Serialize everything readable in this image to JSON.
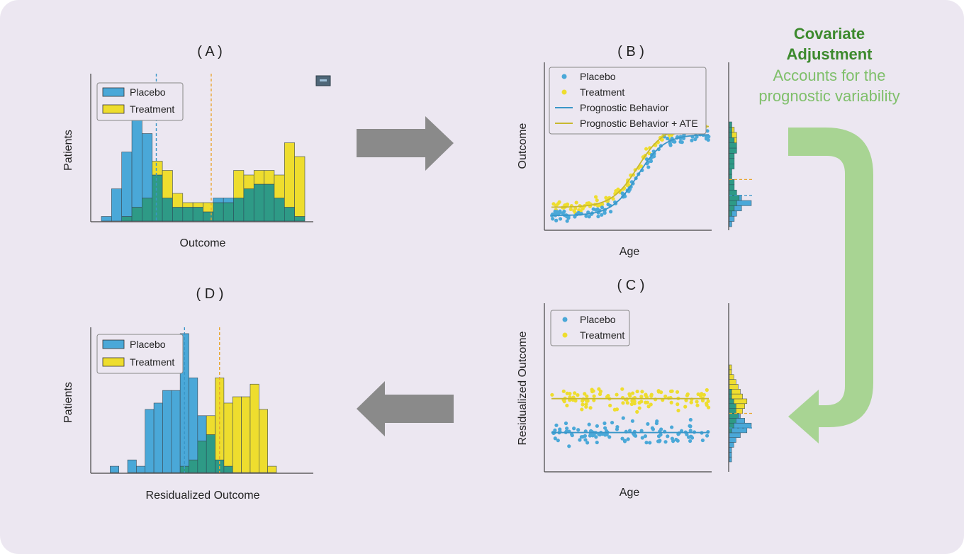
{
  "colors": {
    "placebo": "#4aa8d8",
    "treatment": "#eedd2e",
    "overlap": "#2e9a86",
    "placebo_line": "#3a96c8",
    "treatment_line": "#e8a630",
    "gray_arrow": "#8a8a8a",
    "green_head": "#3d8a2e",
    "green_sub": "#7fbf6a",
    "green_arrow": "#a8d493"
  },
  "annotation": {
    "line1": "Covariate",
    "line2": "Adjustment",
    "line3": "Accounts for the",
    "line4": "prognostic variability"
  },
  "chart_data": [
    {
      "id": "A",
      "type": "bar",
      "title": "( A )",
      "xlabel": "Outcome",
      "ylabel": "Patients",
      "legend_placement": "top-left",
      "series": [
        {
          "name": "Placebo",
          "values": [
            1,
            7,
            15,
            30,
            19,
            10,
            5,
            3,
            3,
            3,
            2,
            5,
            5,
            5,
            7,
            8,
            8,
            5,
            3,
            1
          ]
        },
        {
          "name": "Treatment",
          "values": [
            0,
            0,
            1,
            3,
            5,
            13,
            11,
            6,
            4,
            4,
            4,
            4,
            4,
            11,
            10,
            11,
            11,
            10,
            17,
            14
          ]
        }
      ],
      "ylim": [
        0,
        32
      ],
      "mean_lines": {
        "placebo_bin": 5.4,
        "treatment_bin": 10.8
      }
    },
    {
      "id": "B",
      "type": "scatter",
      "title": "( B )",
      "xlabel": "Age",
      "ylabel": "Outcome",
      "legend_placement": "top-left",
      "legend": [
        "Placebo",
        "Treatment",
        "Prognostic Behavior",
        "Prognostic Behavior + ATE"
      ],
      "xlim": [
        0,
        1
      ],
      "ylim": [
        0,
        1
      ],
      "curve": {
        "form": "logistic",
        "low": 0.12,
        "high": 0.9,
        "midpoint": 0.55,
        "steepness": 12
      },
      "ate": 0.08,
      "points_per_group": 110,
      "marginal_histogram": {
        "placebo": [
          1,
          2,
          3,
          5,
          9,
          5,
          3,
          2,
          2,
          1,
          1,
          2,
          2,
          2,
          3,
          3,
          2,
          1,
          1,
          1
        ],
        "treatment": [
          0,
          0,
          1,
          2,
          3,
          4,
          3,
          2,
          2,
          1,
          1,
          2,
          2,
          2,
          3,
          3,
          3,
          3,
          2,
          1
        ],
        "placebo_mean": 0.3,
        "treatment_mean": 0.45
      }
    },
    {
      "id": "C",
      "type": "scatter",
      "title": "( C )",
      "xlabel": "Age",
      "ylabel": "Residualized Outcome",
      "legend_placement": "top-left",
      "legend": [
        "Placebo",
        "Treatment"
      ],
      "xlim": [
        0,
        1
      ],
      "ylim": [
        0,
        1
      ],
      "placebo_level": 0.35,
      "treatment_level": 0.5,
      "points_per_group": 110,
      "marginal_histogram": {
        "placebo": [
          1,
          1,
          1,
          2,
          3,
          5,
          8,
          10,
          7,
          5,
          3,
          3,
          2,
          1,
          1,
          0,
          0,
          0,
          0,
          0
        ],
        "treatment": [
          0,
          0,
          0,
          0,
          0,
          0,
          1,
          2,
          3,
          4,
          6,
          7,
          8,
          6,
          5,
          4,
          3,
          2,
          1,
          1
        ],
        "placebo_mean": 0.35,
        "treatment_mean": 0.5
      }
    },
    {
      "id": "D",
      "type": "bar",
      "title": "( D )",
      "xlabel": "Residualized Outcome",
      "ylabel": "Patients",
      "legend_placement": "top-left",
      "series": [
        {
          "name": "Placebo",
          "values": [
            0,
            1,
            0,
            2,
            1,
            10,
            11,
            13,
            13,
            22,
            15,
            9,
            6,
            2,
            1,
            0,
            0,
            0,
            0,
            0
          ]
        },
        {
          "name": "Treatment",
          "values": [
            0,
            0,
            0,
            0,
            0,
            0,
            0,
            0,
            0,
            1,
            2,
            5,
            9,
            15,
            11,
            12,
            12,
            14,
            10,
            1
          ]
        }
      ],
      "ylim": [
        0,
        23
      ],
      "mean_lines": {
        "placebo_bin": 9.5,
        "treatment_bin": 13.5
      }
    }
  ]
}
